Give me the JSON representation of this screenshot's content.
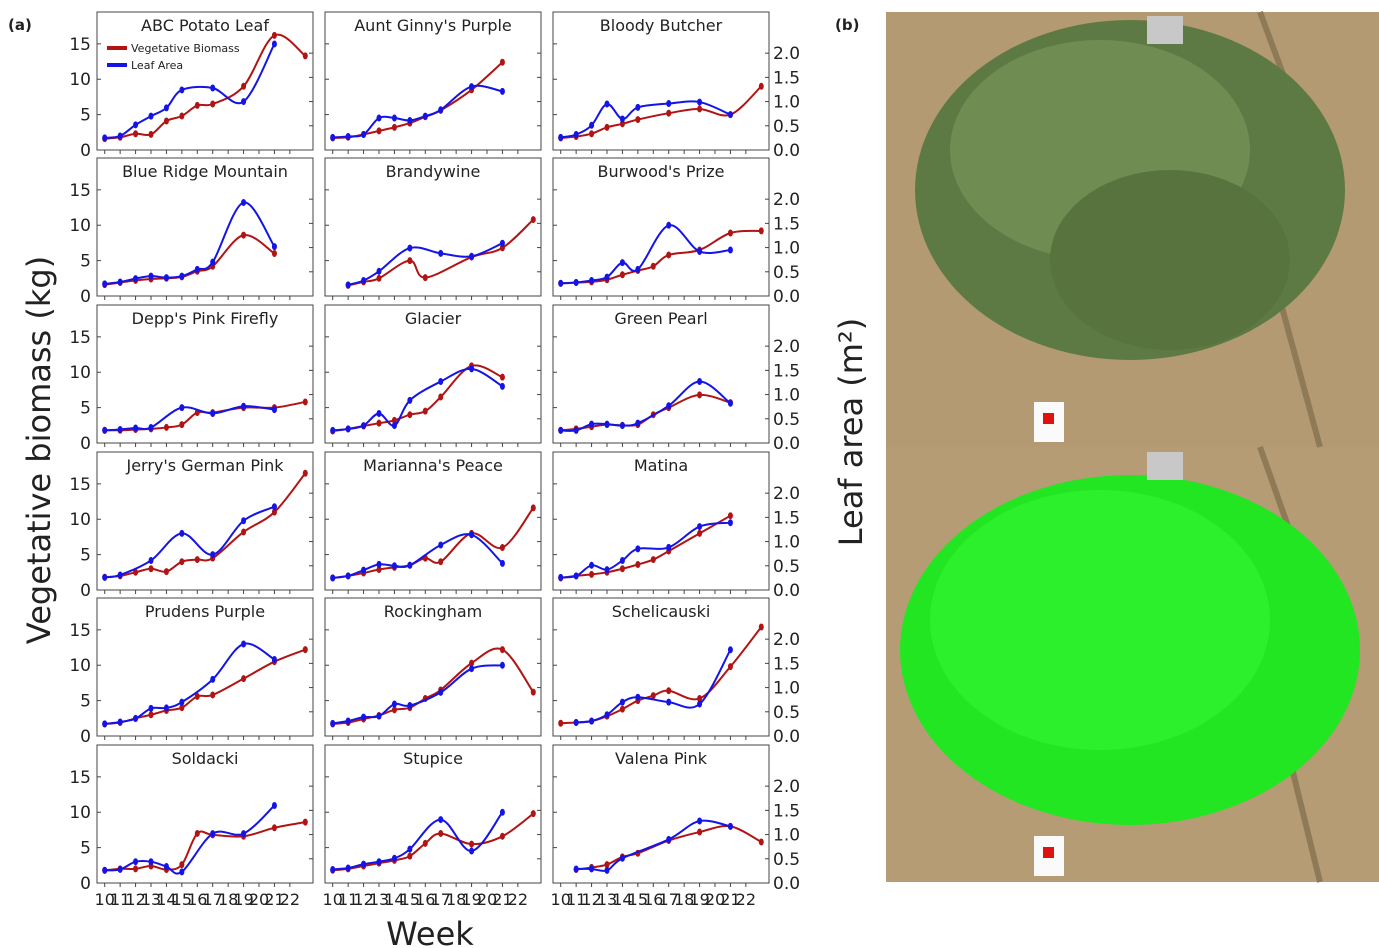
{
  "figure": {
    "label_a": "(a)",
    "label_b": "(b)",
    "xlabel": "Week",
    "ylabel": "Vegetative biomass (kg)",
    "y2label": "Leaf area (m²)"
  },
  "legend": [
    {
      "name": "Vegetative Biomass",
      "color": "#b01414"
    },
    {
      "name": "Leaf Area",
      "color": "#1414e6"
    }
  ],
  "axes": {
    "xlim": [
      9.5,
      23.5
    ],
    "xticks": [
      10,
      11,
      12,
      13,
      14,
      15,
      16,
      17,
      18,
      19,
      20,
      21,
      22
    ],
    "ylim": [
      0,
      19.5
    ],
    "yticks": [
      0,
      5,
      10,
      15
    ],
    "y2lim": [
      0,
      2.85
    ],
    "y2ticks": [
      {
        "value": 0,
        "label": "0.0"
      },
      {
        "value": 0.5,
        "label": "0.5"
      },
      {
        "value": 1,
        "label": "1.0"
      },
      {
        "value": 1.5,
        "label": "1.5"
      },
      {
        "value": 2,
        "label": "2.0"
      }
    ]
  },
  "chart_data": [
    {
      "type": "line",
      "title": "ABC Potato Leaf",
      "series": [
        {
          "x": [
            10,
            11,
            12,
            13,
            14,
            15,
            16,
            17,
            19,
            21,
            23
          ],
          "values": [
            1.6,
            1.8,
            2.3,
            2.2,
            4.1,
            4.8,
            6.3,
            6.5,
            9.0,
            16.2,
            13.3
          ]
        },
        {
          "axis": "y2",
          "x": [
            10,
            11,
            12,
            13,
            14,
            15,
            17,
            19,
            21
          ],
          "values": [
            0.25,
            0.29,
            0.52,
            0.7,
            0.87,
            1.24,
            1.28,
            1.0,
            2.19
          ]
        }
      ]
    },
    {
      "type": "line",
      "title": "Aunt Ginny's Purple",
      "series": [
        {
          "x": [
            10,
            11,
            12,
            13,
            14,
            15,
            16,
            17,
            19,
            21
          ],
          "values": [
            1.7,
            1.8,
            2.2,
            2.7,
            3.2,
            3.8,
            4.7,
            5.6,
            8.5,
            12.4
          ]
        },
        {
          "axis": "y2",
          "x": [
            10,
            11,
            12,
            13,
            14,
            15,
            16,
            17,
            19,
            21
          ],
          "values": [
            0.26,
            0.28,
            0.32,
            0.66,
            0.66,
            0.61,
            0.7,
            0.83,
            1.31,
            1.21
          ]
        }
      ]
    },
    {
      "type": "line",
      "title": "Bloody Butcher",
      "series": [
        {
          "x": [
            10,
            11,
            12,
            13,
            14,
            15,
            17,
            19,
            21,
            23
          ],
          "values": [
            1.7,
            1.9,
            2.3,
            3.2,
            3.7,
            4.3,
            5.2,
            5.8,
            5.0,
            9.0
          ]
        },
        {
          "axis": "y2",
          "x": [
            10,
            11,
            12,
            13,
            14,
            15,
            17,
            19,
            21
          ],
          "values": [
            0.26,
            0.32,
            0.51,
            0.95,
            0.64,
            0.88,
            0.96,
            0.99,
            0.73
          ]
        }
      ]
    },
    {
      "type": "line",
      "title": "Blue Ridge Mountain",
      "series": [
        {
          "x": [
            10,
            11,
            12,
            13,
            14,
            15,
            16,
            17,
            19,
            21
          ],
          "values": [
            1.6,
            1.9,
            2.2,
            2.4,
            2.5,
            2.7,
            3.5,
            4.2,
            8.6,
            6.0
          ]
        },
        {
          "axis": "y2",
          "x": [
            10,
            11,
            12,
            13,
            14,
            15,
            16,
            17,
            19,
            21
          ],
          "values": [
            0.25,
            0.29,
            0.36,
            0.41,
            0.38,
            0.41,
            0.55,
            0.7,
            1.93,
            1.02
          ]
        }
      ]
    },
    {
      "type": "line",
      "title": "Brandywine",
      "series": [
        {
          "x": [
            11,
            12,
            13,
            15,
            16,
            19,
            21,
            23
          ],
          "values": [
            1.5,
            2.0,
            2.5,
            5.0,
            2.6,
            5.5,
            6.8,
            10.8
          ]
        },
        {
          "axis": "y2",
          "x": [
            11,
            12,
            13,
            15,
            17,
            19,
            21
          ],
          "values": [
            0.23,
            0.32,
            0.51,
            0.99,
            0.88,
            0.82,
            1.09
          ]
        }
      ]
    },
    {
      "type": "line",
      "title": "Burwood's Prize",
      "series": [
        {
          "x": [
            10,
            11,
            12,
            13,
            14,
            15,
            16,
            17,
            19,
            21,
            23
          ],
          "values": [
            1.8,
            1.9,
            2.0,
            2.3,
            3.0,
            3.6,
            4.2,
            5.8,
            6.5,
            8.9,
            9.2
          ]
        },
        {
          "axis": "y2",
          "x": [
            10,
            11,
            12,
            13,
            14,
            15,
            17,
            19,
            21
          ],
          "values": [
            0.26,
            0.28,
            0.32,
            0.39,
            0.69,
            0.55,
            1.46,
            0.92,
            0.95
          ]
        }
      ]
    },
    {
      "type": "line",
      "title": "Depp's Pink Firefly",
      "series": [
        {
          "x": [
            10,
            11,
            12,
            13,
            14,
            15,
            16,
            17,
            19,
            21,
            23
          ],
          "values": [
            1.8,
            1.8,
            1.9,
            2.0,
            2.2,
            2.6,
            4.3,
            4.3,
            5.0,
            5.0,
            5.8
          ]
        },
        {
          "axis": "y2",
          "x": [
            10,
            11,
            12,
            13,
            15,
            17,
            19,
            21
          ],
          "values": [
            0.26,
            0.28,
            0.31,
            0.32,
            0.73,
            0.61,
            0.76,
            0.69
          ]
        }
      ]
    },
    {
      "type": "line",
      "title": "Glacier",
      "series": [
        {
          "x": [
            10,
            11,
            12,
            13,
            14,
            15,
            16,
            17,
            19,
            21
          ],
          "values": [
            1.7,
            2.0,
            2.4,
            2.8,
            3.2,
            4.0,
            4.5,
            6.5,
            10.9,
            9.3
          ]
        },
        {
          "axis": "y2",
          "x": [
            10,
            11,
            12,
            13,
            14,
            15,
            17,
            19,
            21
          ],
          "values": [
            0.26,
            0.29,
            0.36,
            0.61,
            0.36,
            0.88,
            1.27,
            1.53,
            1.17
          ]
        }
      ]
    },
    {
      "type": "line",
      "title": "Green Pearl",
      "series": [
        {
          "x": [
            10,
            11,
            12,
            13,
            14,
            15,
            16,
            17,
            19,
            21
          ],
          "values": [
            1.8,
            2.0,
            2.3,
            2.6,
            2.5,
            2.6,
            4.0,
            5.0,
            6.8,
            5.7
          ]
        },
        {
          "axis": "y2",
          "x": [
            10,
            11,
            12,
            13,
            14,
            15,
            17,
            19,
            21
          ],
          "values": [
            0.26,
            0.26,
            0.39,
            0.39,
            0.36,
            0.41,
            0.77,
            1.27,
            0.82
          ]
        }
      ]
    },
    {
      "type": "line",
      "title": "Jerry's German Pink",
      "series": [
        {
          "x": [
            10,
            11,
            12,
            13,
            14,
            15,
            16,
            17,
            19,
            21,
            23
          ],
          "values": [
            1.8,
            2.0,
            2.5,
            3.0,
            2.6,
            4.0,
            4.3,
            4.5,
            8.2,
            11.0,
            16.5
          ]
        },
        {
          "axis": "y2",
          "x": [
            10,
            11,
            13,
            15,
            17,
            19,
            21
          ],
          "values": [
            0.26,
            0.31,
            0.61,
            1.17,
            0.73,
            1.43,
            1.72
          ]
        }
      ]
    },
    {
      "type": "line",
      "title": "Marianna's Peace",
      "series": [
        {
          "x": [
            10,
            11,
            12,
            13,
            14,
            15,
            16,
            17,
            19,
            21,
            23
          ],
          "values": [
            1.7,
            2.0,
            2.4,
            2.9,
            3.2,
            3.5,
            4.5,
            4.0,
            8.0,
            6.0,
            11.6
          ]
        },
        {
          "axis": "y2",
          "x": [
            10,
            11,
            12,
            13,
            14,
            15,
            17,
            19,
            21
          ],
          "values": [
            0.25,
            0.29,
            0.41,
            0.53,
            0.5,
            0.51,
            0.93,
            1.14,
            0.55
          ]
        }
      ]
    },
    {
      "type": "line",
      "title": "Matina",
      "series": [
        {
          "x": [
            10,
            11,
            12,
            13,
            14,
            15,
            16,
            17,
            19,
            21
          ],
          "values": [
            1.7,
            2.0,
            2.2,
            2.5,
            3.0,
            3.6,
            4.3,
            5.5,
            8.0,
            10.5
          ]
        },
        {
          "axis": "y2",
          "x": [
            10,
            11,
            12,
            13,
            14,
            15,
            17,
            19,
            21
          ],
          "values": [
            0.26,
            0.29,
            0.51,
            0.42,
            0.61,
            0.85,
            0.88,
            1.31,
            1.39
          ]
        }
      ]
    },
    {
      "type": "line",
      "title": "Prudens Purple",
      "series": [
        {
          "x": [
            10,
            11,
            12,
            13,
            14,
            15,
            16,
            17,
            19,
            21,
            23
          ],
          "values": [
            1.7,
            1.9,
            2.5,
            3.0,
            3.6,
            4.0,
            5.6,
            5.8,
            8.1,
            10.5,
            12.2
          ]
        },
        {
          "axis": "y2",
          "x": [
            10,
            11,
            12,
            13,
            14,
            15,
            17,
            19,
            21
          ],
          "values": [
            0.25,
            0.29,
            0.36,
            0.57,
            0.58,
            0.7,
            1.17,
            1.9,
            1.58
          ]
        }
      ]
    },
    {
      "type": "line",
      "title": "Rockingham",
      "series": [
        {
          "x": [
            10,
            11,
            12,
            13,
            14,
            15,
            16,
            17,
            19,
            21,
            23
          ],
          "values": [
            1.7,
            1.9,
            2.4,
            2.9,
            3.7,
            4.0,
            5.3,
            6.5,
            10.3,
            12.2,
            6.2
          ]
        },
        {
          "axis": "y2",
          "x": [
            10,
            11,
            12,
            13,
            14,
            15,
            17,
            19,
            21
          ],
          "values": [
            0.26,
            0.31,
            0.39,
            0.41,
            0.66,
            0.63,
            0.9,
            1.39,
            1.46
          ]
        }
      ]
    },
    {
      "type": "line",
      "title": "Schelicauski",
      "series": [
        {
          "x": [
            10,
            11,
            12,
            13,
            14,
            15,
            16,
            17,
            19,
            21,
            23
          ],
          "values": [
            1.8,
            1.9,
            2.1,
            2.8,
            3.8,
            5.0,
            5.7,
            6.4,
            5.3,
            9.8,
            15.4
          ]
        },
        {
          "axis": "y2",
          "x": [
            11,
            12,
            13,
            14,
            15,
            17,
            19,
            21
          ],
          "values": [
            0.28,
            0.31,
            0.44,
            0.7,
            0.8,
            0.7,
            0.66,
            1.78
          ]
        }
      ]
    },
    {
      "type": "line",
      "title": "Soldacki",
      "series": [
        {
          "x": [
            10,
            11,
            12,
            13,
            14,
            15,
            16,
            17,
            19,
            21,
            23
          ],
          "values": [
            1.8,
            2.0,
            2.0,
            2.4,
            1.9,
            2.6,
            7.0,
            6.8,
            6.6,
            7.8,
            8.6
          ]
        },
        {
          "axis": "y2",
          "x": [
            10,
            11,
            12,
            13,
            14,
            15,
            17,
            19,
            21
          ],
          "values": [
            0.26,
            0.28,
            0.44,
            0.44,
            0.34,
            0.23,
            1.02,
            1.02,
            1.6
          ]
        }
      ]
    },
    {
      "type": "line",
      "title": "Stupice",
      "series": [
        {
          "x": [
            10,
            11,
            12,
            13,
            14,
            15,
            16,
            17,
            19,
            21,
            23
          ],
          "values": [
            1.8,
            2.0,
            2.4,
            2.8,
            3.2,
            3.8,
            5.6,
            7.0,
            5.5,
            6.6,
            9.8
          ]
        },
        {
          "axis": "y2",
          "x": [
            10,
            11,
            12,
            13,
            14,
            15,
            17,
            19,
            21
          ],
          "values": [
            0.28,
            0.31,
            0.39,
            0.44,
            0.51,
            0.7,
            1.31,
            0.66,
            1.46
          ]
        }
      ]
    },
    {
      "type": "line",
      "title": "Valena Pink",
      "series": [
        {
          "x": [
            11,
            12,
            13,
            14,
            15,
            17,
            19,
            21,
            23
          ],
          "values": [
            1.9,
            2.2,
            2.6,
            3.7,
            4.2,
            6.0,
            7.2,
            8.0,
            5.8
          ]
        },
        {
          "axis": "y2",
          "x": [
            11,
            12,
            13,
            14,
            17,
            19,
            21
          ],
          "values": [
            0.29,
            0.29,
            0.26,
            0.51,
            0.9,
            1.28,
            1.17
          ]
        }
      ]
    }
  ]
}
